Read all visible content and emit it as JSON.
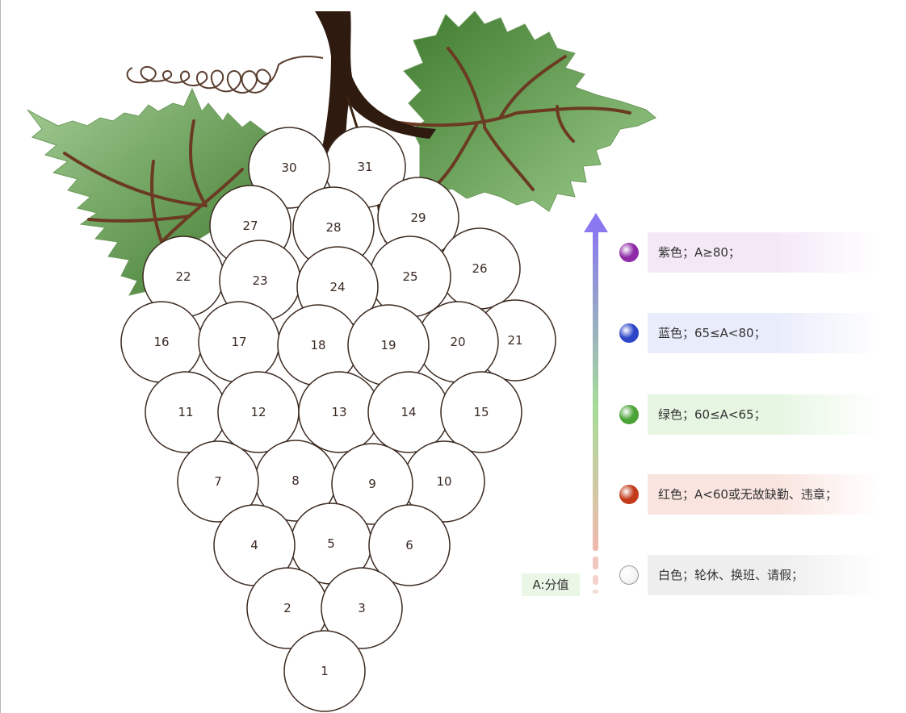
{
  "grapes": [
    {
      "label": "1"
    },
    {
      "label": "2"
    },
    {
      "label": "3"
    },
    {
      "label": "4"
    },
    {
      "label": "5"
    },
    {
      "label": "6"
    },
    {
      "label": "7"
    },
    {
      "label": "8"
    },
    {
      "label": "9"
    },
    {
      "label": "10"
    },
    {
      "label": "11"
    },
    {
      "label": "12"
    },
    {
      "label": "13"
    },
    {
      "label": "14"
    },
    {
      "label": "15"
    },
    {
      "label": "16"
    },
    {
      "label": "17"
    },
    {
      "label": "18"
    },
    {
      "label": "19"
    },
    {
      "label": "20"
    },
    {
      "label": "21"
    },
    {
      "label": "22"
    },
    {
      "label": "23"
    },
    {
      "label": "24"
    },
    {
      "label": "25"
    },
    {
      "label": "26"
    },
    {
      "label": "27"
    },
    {
      "label": "28"
    },
    {
      "label": "29"
    },
    {
      "label": "30"
    },
    {
      "label": "31"
    }
  ],
  "grape_fill": "#ffffff",
  "grape_stroke": "#3b2a20",
  "legend": {
    "items": [
      {
        "label": "紫色；A≥80；",
        "color": "#8e2aa8",
        "band": "#f4e8f7"
      },
      {
        "label": "蓝色；65≤A<80；",
        "color": "#2d46c8",
        "band": "#e9ecfb"
      },
      {
        "label": "绿色；60≤A<65；",
        "color": "#4aa336",
        "band": "#e6f6e2"
      },
      {
        "label": "红色；A<60或无故缺勤、违章；",
        "color": "#c23a1a",
        "band": "#f9e4df"
      },
      {
        "label": "白色；轮休、换班、请假；",
        "color": "#ffffff",
        "band": "#eeeeee"
      }
    ]
  },
  "axis": {
    "label": "A:分值",
    "gradient_top": "#8a78f0",
    "gradient_mid": "#a6dc98",
    "gradient_bottom": "#f0b9ae"
  },
  "colors": {
    "leaf_light": "#8dbf7f",
    "leaf_dark": "#3f7a2e",
    "stem": "#2e1a0e",
    "vein": "#6b3a22"
  }
}
